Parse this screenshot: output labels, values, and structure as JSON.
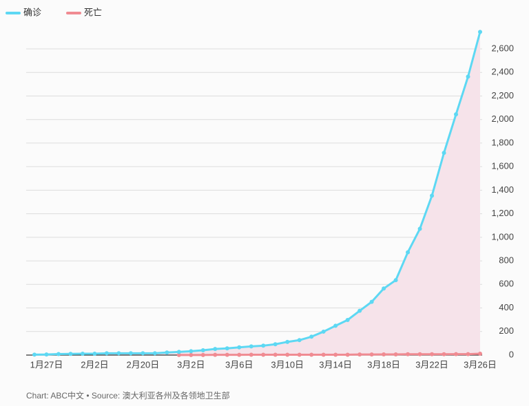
{
  "chart_data": {
    "type": "line",
    "source": "Chart: ABC中文 • Source: 澳大利亚各州及各领地卫生部",
    "categories": [
      null,
      "1月27日",
      null,
      null,
      null,
      "2月2日",
      null,
      null,
      null,
      "2月20日",
      null,
      null,
      null,
      "3月2日",
      null,
      null,
      null,
      "3月6日",
      null,
      null,
      null,
      "3月10日",
      null,
      null,
      null,
      "3月14日",
      null,
      null,
      null,
      "3月18日",
      null,
      null,
      null,
      "3月22日",
      null,
      null,
      null,
      "3月26日"
    ],
    "series": [
      {
        "name": "确诊",
        "color": "#5dd8f3",
        "area_color": "#f6e3ea",
        "values": [
          4,
          5,
          9,
          10,
          12,
          12,
          15,
          15,
          15,
          15,
          15,
          22,
          27,
          33,
          41,
          52,
          57,
          66,
          74,
          80,
          92,
          112,
          127,
          156,
          199,
          249,
          298,
          376,
          452,
          565,
          636,
          873,
          1072,
          1353,
          1717,
          2044,
          2364,
          2744
        ]
      },
      {
        "name": "死亡",
        "color": "#f08b92",
        "values": [
          null,
          null,
          null,
          null,
          null,
          null,
          null,
          null,
          null,
          null,
          null,
          null,
          1,
          1,
          1,
          2,
          2,
          2,
          3,
          3,
          3,
          3,
          3,
          3,
          3,
          3,
          3,
          5,
          5,
          6,
          6,
          7,
          7,
          7,
          7,
          8,
          8,
          12
        ]
      }
    ],
    "ylim": [
      0,
      2600
    ],
    "yticks": [
      0,
      200,
      400,
      600,
      800,
      {
        "value": 1000,
        "label": "1,000"
      },
      {
        "value": 1200,
        "label": "1,200"
      },
      {
        "value": 1400,
        "label": "1,400"
      },
      {
        "value": 1600,
        "label": "1,600"
      },
      {
        "value": 1800,
        "label": "1,800"
      },
      {
        "value": 2000,
        "label": "2,000"
      },
      {
        "value": 2200,
        "label": "2,200"
      },
      {
        "value": 2400,
        "label": "2,400"
      },
      {
        "value": 2600,
        "label": "2,600"
      }
    ],
    "grid": true
  }
}
